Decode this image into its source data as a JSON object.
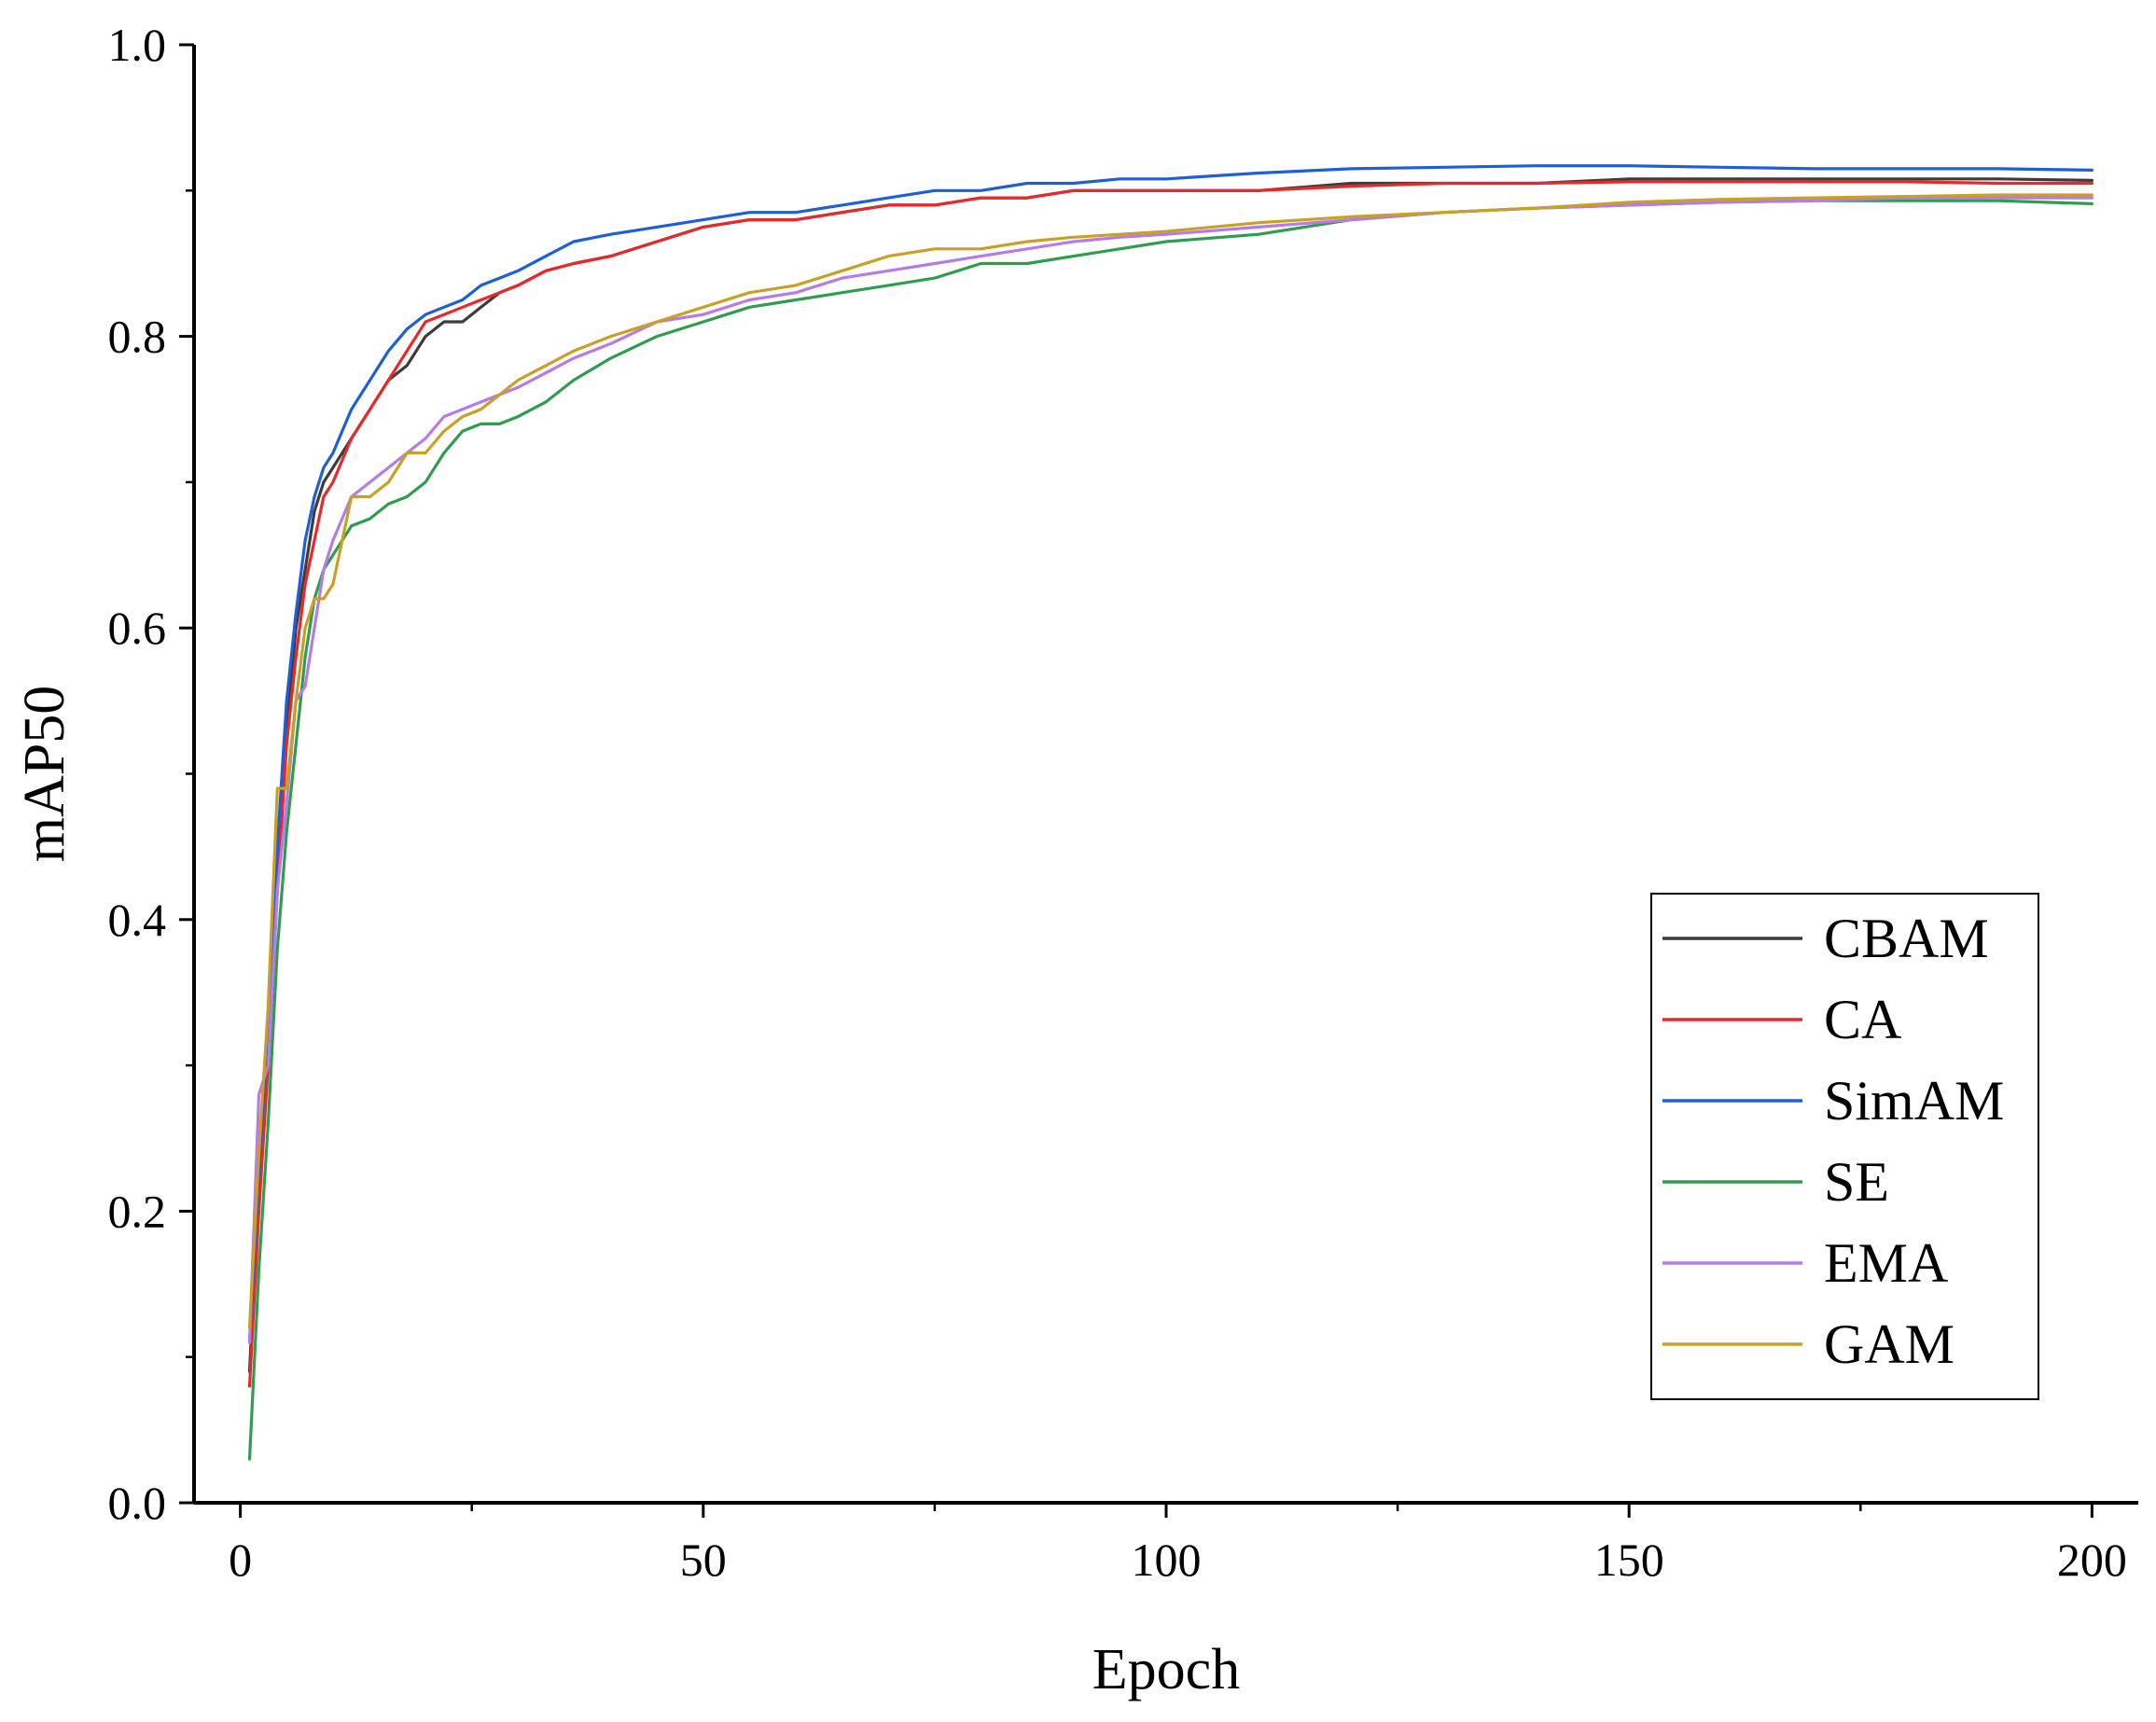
{
  "chart_data": {
    "type": "line",
    "title": "",
    "xlabel": "Epoch",
    "ylabel": "mAP50",
    "xlim": [
      -5,
      205
    ],
    "ylim": [
      0.0,
      1.0
    ],
    "x_ticks": [
      0,
      50,
      100,
      150,
      200
    ],
    "x_tick_labels": [
      "0",
      "50",
      "100",
      "150",
      "200"
    ],
    "x_minor_ticks": [
      25,
      75,
      125,
      175
    ],
    "y_ticks": [
      0.0,
      0.2,
      0.4,
      0.6,
      0.8,
      1.0
    ],
    "y_tick_labels": [
      "0.0",
      "0.2",
      "0.4",
      "0.6",
      "0.8",
      "1.0"
    ],
    "y_minor_ticks": [
      0.1,
      0.3,
      0.5,
      0.7,
      0.9
    ],
    "grid": false,
    "legend_position": "bottom-right",
    "series": [
      {
        "name": "CBAM",
        "color": "#3c3c3c",
        "points": [
          [
            1,
            0.09
          ],
          [
            2,
            0.22
          ],
          [
            3,
            0.32
          ],
          [
            4,
            0.42
          ],
          [
            5,
            0.53
          ],
          [
            6,
            0.6
          ],
          [
            7,
            0.64
          ],
          [
            8,
            0.68
          ],
          [
            9,
            0.7
          ],
          [
            10,
            0.71
          ],
          [
            12,
            0.73
          ],
          [
            14,
            0.75
          ],
          [
            16,
            0.77
          ],
          [
            18,
            0.78
          ],
          [
            20,
            0.8
          ],
          [
            22,
            0.81
          ],
          [
            24,
            0.81
          ],
          [
            26,
            0.82
          ],
          [
            28,
            0.83
          ],
          [
            30,
            0.835
          ],
          [
            33,
            0.845
          ],
          [
            36,
            0.85
          ],
          [
            40,
            0.855
          ],
          [
            45,
            0.865
          ],
          [
            50,
            0.875
          ],
          [
            55,
            0.88
          ],
          [
            60,
            0.88
          ],
          [
            65,
            0.885
          ],
          [
            70,
            0.89
          ],
          [
            75,
            0.89
          ],
          [
            80,
            0.895
          ],
          [
            85,
            0.895
          ],
          [
            90,
            0.9
          ],
          [
            95,
            0.9
          ],
          [
            100,
            0.9
          ],
          [
            110,
            0.9
          ],
          [
            120,
            0.905
          ],
          [
            130,
            0.905
          ],
          [
            140,
            0.905
          ],
          [
            150,
            0.908
          ],
          [
            160,
            0.908
          ],
          [
            170,
            0.908
          ],
          [
            180,
            0.908
          ],
          [
            190,
            0.908
          ],
          [
            200,
            0.907
          ]
        ]
      },
      {
        "name": "CA",
        "color": "#e8292c",
        "points": [
          [
            1,
            0.08
          ],
          [
            2,
            0.2
          ],
          [
            3,
            0.3
          ],
          [
            4,
            0.42
          ],
          [
            5,
            0.52
          ],
          [
            6,
            0.58
          ],
          [
            7,
            0.63
          ],
          [
            8,
            0.66
          ],
          [
            9,
            0.69
          ],
          [
            10,
            0.7
          ],
          [
            12,
            0.73
          ],
          [
            14,
            0.75
          ],
          [
            16,
            0.77
          ],
          [
            18,
            0.79
          ],
          [
            20,
            0.81
          ],
          [
            22,
            0.815
          ],
          [
            24,
            0.82
          ],
          [
            26,
            0.825
          ],
          [
            28,
            0.83
          ],
          [
            30,
            0.835
          ],
          [
            33,
            0.845
          ],
          [
            36,
            0.85
          ],
          [
            40,
            0.855
          ],
          [
            45,
            0.865
          ],
          [
            50,
            0.875
          ],
          [
            55,
            0.88
          ],
          [
            60,
            0.88
          ],
          [
            65,
            0.885
          ],
          [
            70,
            0.89
          ],
          [
            75,
            0.89
          ],
          [
            80,
            0.895
          ],
          [
            85,
            0.895
          ],
          [
            90,
            0.9
          ],
          [
            95,
            0.9
          ],
          [
            100,
            0.9
          ],
          [
            110,
            0.9
          ],
          [
            120,
            0.903
          ],
          [
            130,
            0.905
          ],
          [
            140,
            0.905
          ],
          [
            150,
            0.906
          ],
          [
            160,
            0.906
          ],
          [
            170,
            0.906
          ],
          [
            180,
            0.906
          ],
          [
            190,
            0.905
          ],
          [
            200,
            0.905
          ]
        ]
      },
      {
        "name": "SimAM",
        "color": "#1e5fd6",
        "points": [
          [
            1,
            0.11
          ],
          [
            2,
            0.23
          ],
          [
            3,
            0.33
          ],
          [
            4,
            0.45
          ],
          [
            5,
            0.55
          ],
          [
            6,
            0.61
          ],
          [
            7,
            0.66
          ],
          [
            8,
            0.69
          ],
          [
            9,
            0.71
          ],
          [
            10,
            0.72
          ],
          [
            12,
            0.75
          ],
          [
            14,
            0.77
          ],
          [
            16,
            0.79
          ],
          [
            18,
            0.805
          ],
          [
            20,
            0.815
          ],
          [
            22,
            0.82
          ],
          [
            24,
            0.825
          ],
          [
            26,
            0.835
          ],
          [
            28,
            0.84
          ],
          [
            30,
            0.845
          ],
          [
            33,
            0.855
          ],
          [
            36,
            0.865
          ],
          [
            40,
            0.87
          ],
          [
            45,
            0.875
          ],
          [
            50,
            0.88
          ],
          [
            55,
            0.885
          ],
          [
            60,
            0.885
          ],
          [
            65,
            0.89
          ],
          [
            70,
            0.895
          ],
          [
            75,
            0.9
          ],
          [
            80,
            0.9
          ],
          [
            85,
            0.905
          ],
          [
            90,
            0.905
          ],
          [
            95,
            0.908
          ],
          [
            100,
            0.908
          ],
          [
            110,
            0.912
          ],
          [
            120,
            0.915
          ],
          [
            130,
            0.916
          ],
          [
            140,
            0.917
          ],
          [
            150,
            0.917
          ],
          [
            160,
            0.916
          ],
          [
            170,
            0.915
          ],
          [
            180,
            0.915
          ],
          [
            190,
            0.915
          ],
          [
            200,
            0.914
          ]
        ]
      },
      {
        "name": "SE",
        "color": "#2e9e4e",
        "points": [
          [
            1,
            0.03
          ],
          [
            2,
            0.16
          ],
          [
            3,
            0.26
          ],
          [
            4,
            0.38
          ],
          [
            5,
            0.46
          ],
          [
            6,
            0.52
          ],
          [
            7,
            0.58
          ],
          [
            8,
            0.62
          ],
          [
            9,
            0.64
          ],
          [
            10,
            0.65
          ],
          [
            12,
            0.67
          ],
          [
            14,
            0.675
          ],
          [
            16,
            0.685
          ],
          [
            18,
            0.69
          ],
          [
            20,
            0.7
          ],
          [
            22,
            0.72
          ],
          [
            24,
            0.735
          ],
          [
            26,
            0.74
          ],
          [
            28,
            0.74
          ],
          [
            30,
            0.745
          ],
          [
            33,
            0.755
          ],
          [
            36,
            0.77
          ],
          [
            40,
            0.785
          ],
          [
            45,
            0.8
          ],
          [
            50,
            0.81
          ],
          [
            55,
            0.82
          ],
          [
            60,
            0.825
          ],
          [
            65,
            0.83
          ],
          [
            70,
            0.835
          ],
          [
            75,
            0.84
          ],
          [
            80,
            0.85
          ],
          [
            85,
            0.85
          ],
          [
            90,
            0.855
          ],
          [
            95,
            0.86
          ],
          [
            100,
            0.865
          ],
          [
            110,
            0.87
          ],
          [
            120,
            0.88
          ],
          [
            130,
            0.885
          ],
          [
            140,
            0.888
          ],
          [
            150,
            0.89
          ],
          [
            160,
            0.892
          ],
          [
            170,
            0.893
          ],
          [
            180,
            0.893
          ],
          [
            190,
            0.893
          ],
          [
            200,
            0.891
          ]
        ]
      },
      {
        "name": "EMA",
        "color": "#b57be8",
        "points": [
          [
            1,
            0.11
          ],
          [
            2,
            0.28
          ],
          [
            3,
            0.3
          ],
          [
            4,
            0.42
          ],
          [
            5,
            0.48
          ],
          [
            6,
            0.55
          ],
          [
            7,
            0.56
          ],
          [
            8,
            0.6
          ],
          [
            9,
            0.64
          ],
          [
            10,
            0.66
          ],
          [
            12,
            0.69
          ],
          [
            14,
            0.7
          ],
          [
            16,
            0.71
          ],
          [
            18,
            0.72
          ],
          [
            20,
            0.73
          ],
          [
            22,
            0.745
          ],
          [
            24,
            0.75
          ],
          [
            26,
            0.755
          ],
          [
            28,
            0.76
          ],
          [
            30,
            0.765
          ],
          [
            33,
            0.775
          ],
          [
            36,
            0.785
          ],
          [
            40,
            0.795
          ],
          [
            45,
            0.81
          ],
          [
            50,
            0.815
          ],
          [
            55,
            0.825
          ],
          [
            60,
            0.83
          ],
          [
            65,
            0.84
          ],
          [
            70,
            0.845
          ],
          [
            75,
            0.85
          ],
          [
            80,
            0.855
          ],
          [
            85,
            0.86
          ],
          [
            90,
            0.865
          ],
          [
            95,
            0.868
          ],
          [
            100,
            0.87
          ],
          [
            110,
            0.875
          ],
          [
            120,
            0.88
          ],
          [
            130,
            0.885
          ],
          [
            140,
            0.888
          ],
          [
            150,
            0.89
          ],
          [
            160,
            0.892
          ],
          [
            170,
            0.893
          ],
          [
            180,
            0.895
          ],
          [
            190,
            0.895
          ],
          [
            200,
            0.895
          ]
        ]
      },
      {
        "name": "GAM",
        "color": "#c9a023",
        "points": [
          [
            1,
            0.12
          ],
          [
            2,
            0.24
          ],
          [
            3,
            0.34
          ],
          [
            4,
            0.49
          ],
          [
            5,
            0.49
          ],
          [
            6,
            0.55
          ],
          [
            7,
            0.6
          ],
          [
            8,
            0.62
          ],
          [
            9,
            0.62
          ],
          [
            10,
            0.63
          ],
          [
            12,
            0.69
          ],
          [
            14,
            0.69
          ],
          [
            16,
            0.7
          ],
          [
            18,
            0.72
          ],
          [
            20,
            0.72
          ],
          [
            22,
            0.735
          ],
          [
            24,
            0.745
          ],
          [
            26,
            0.75
          ],
          [
            28,
            0.76
          ],
          [
            30,
            0.77
          ],
          [
            33,
            0.78
          ],
          [
            36,
            0.79
          ],
          [
            40,
            0.8
          ],
          [
            45,
            0.81
          ],
          [
            50,
            0.82
          ],
          [
            55,
            0.83
          ],
          [
            60,
            0.835
          ],
          [
            65,
            0.845
          ],
          [
            70,
            0.855
          ],
          [
            75,
            0.86
          ],
          [
            80,
            0.86
          ],
          [
            85,
            0.865
          ],
          [
            90,
            0.868
          ],
          [
            95,
            0.87
          ],
          [
            100,
            0.872
          ],
          [
            110,
            0.878
          ],
          [
            120,
            0.882
          ],
          [
            130,
            0.885
          ],
          [
            140,
            0.888
          ],
          [
            150,
            0.892
          ],
          [
            160,
            0.894
          ],
          [
            170,
            0.895
          ],
          [
            180,
            0.896
          ],
          [
            190,
            0.897
          ],
          [
            200,
            0.897
          ]
        ]
      }
    ]
  }
}
